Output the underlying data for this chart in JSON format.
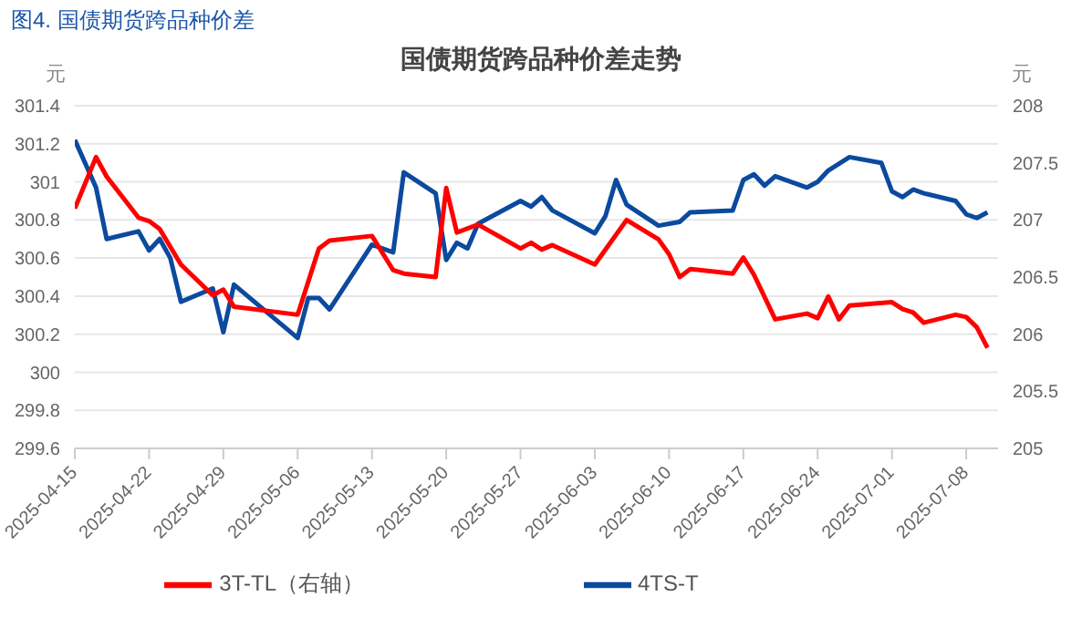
{
  "chart_data": {
    "type": "line",
    "title": "国债期货跨品种价差走势",
    "annotations": [
      "图4. 国债期货跨品种价差"
    ],
    "ylabel": "元",
    "y2label": "元",
    "xlim": [
      "2025-04-15",
      "2025-07-11"
    ],
    "xticks": [
      "2025-04-15",
      "2025-04-22",
      "2025-04-29",
      "2025-05-06",
      "2025-05-13",
      "2025-05-20",
      "2025-05-27",
      "2025-06-03",
      "2025-06-10",
      "2025-06-17",
      "2025-06-24",
      "2025-07-01",
      "2025-07-08"
    ],
    "ylim": [
      299.6,
      301.4
    ],
    "yticks": [
      299.6,
      299.8,
      300,
      300.2,
      300.4,
      300.6,
      300.8,
      301,
      301.2,
      301.4
    ],
    "y2lim": [
      205,
      208
    ],
    "y2ticks": [
      205,
      205.5,
      206,
      206.5,
      207,
      207.5,
      208
    ],
    "grid": "y",
    "legend": "bottom",
    "marker": "none",
    "line_style": "solid",
    "series": [
      {
        "name": "4TS-T",
        "color": "#0b4a9e",
        "x": [
          "2025-04-15",
          "2025-04-17",
          "2025-04-18",
          "2025-04-21",
          "2025-04-22",
          "2025-04-23",
          "2025-04-24",
          "2025-04-25",
          "2025-04-28",
          "2025-04-29",
          "2025-04-30",
          "2025-05-06",
          "2025-05-07",
          "2025-05-08",
          "2025-05-09",
          "2025-05-13",
          "2025-05-15",
          "2025-05-16",
          "2025-05-19",
          "2025-05-20",
          "2025-05-21",
          "2025-05-22",
          "2025-05-23",
          "2025-05-27",
          "2025-05-28",
          "2025-05-29",
          "2025-05-30",
          "2025-06-03",
          "2025-06-04",
          "2025-06-05",
          "2025-06-06",
          "2025-06-09",
          "2025-06-10",
          "2025-06-11",
          "2025-06-12",
          "2025-06-16",
          "2025-06-17",
          "2025-06-18",
          "2025-06-19",
          "2025-06-20",
          "2025-06-23",
          "2025-06-24",
          "2025-06-25",
          "2025-06-27",
          "2025-06-30",
          "2025-07-01",
          "2025-07-02",
          "2025-07-03",
          "2025-07-04",
          "2025-07-07",
          "2025-07-08",
          "2025-07-09",
          "2025-07-10"
        ],
        "values": [
          301.22,
          300.97,
          300.7,
          300.74,
          300.64,
          300.7,
          300.6,
          300.37,
          300.44,
          300.21,
          300.46,
          300.18,
          300.39,
          300.39,
          300.33,
          300.67,
          300.63,
          301.05,
          300.94,
          300.59,
          300.68,
          300.65,
          300.78,
          300.9,
          300.87,
          300.92,
          300.85,
          300.73,
          300.82,
          301.01,
          300.88,
          300.77,
          300.78,
          300.79,
          300.84,
          300.85,
          301.01,
          301.04,
          300.98,
          301.03,
          300.97,
          301.0,
          301.06,
          301.13,
          301.1,
          300.95,
          300.92,
          300.96,
          300.94,
          300.9,
          300.83,
          300.81,
          300.84
        ]
      },
      {
        "name": "3T-TL（右轴）",
        "color": "#ff0000",
        "axis": "y2",
        "x": [
          "2025-04-15",
          "2025-04-17",
          "2025-04-18",
          "2025-04-21",
          "2025-04-22",
          "2025-04-23",
          "2025-04-25",
          "2025-04-28",
          "2025-04-29",
          "2025-04-30",
          "2025-05-06",
          "2025-05-08",
          "2025-05-09",
          "2025-05-13",
          "2025-05-15",
          "2025-05-16",
          "2025-05-19",
          "2025-05-20",
          "2025-05-21",
          "2025-05-23",
          "2025-05-27",
          "2025-05-28",
          "2025-05-29",
          "2025-05-30",
          "2025-06-03",
          "2025-06-06",
          "2025-06-09",
          "2025-06-10",
          "2025-06-11",
          "2025-06-12",
          "2025-06-16",
          "2025-06-17",
          "2025-06-18",
          "2025-06-20",
          "2025-06-23",
          "2025-06-24",
          "2025-06-25",
          "2025-06-26",
          "2025-06-27",
          "2025-07-01",
          "2025-07-02",
          "2025-07-03",
          "2025-07-04",
          "2025-07-07",
          "2025-07-08",
          "2025-07-09",
          "2025-07-10"
        ],
        "values": [
          207.1,
          207.55,
          207.38,
          207.02,
          206.99,
          206.92,
          206.61,
          206.34,
          206.39,
          206.24,
          206.17,
          206.75,
          206.82,
          206.86,
          206.56,
          206.53,
          206.5,
          207.28,
          206.89,
          206.96,
          206.75,
          206.8,
          206.74,
          206.78,
          206.61,
          207.0,
          206.83,
          206.7,
          206.5,
          206.57,
          206.53,
          206.67,
          206.52,
          206.13,
          206.18,
          206.14,
          206.33,
          206.13,
          206.25,
          206.28,
          206.22,
          206.19,
          206.1,
          206.17,
          206.15,
          206.06,
          205.88
        ]
      }
    ]
  }
}
